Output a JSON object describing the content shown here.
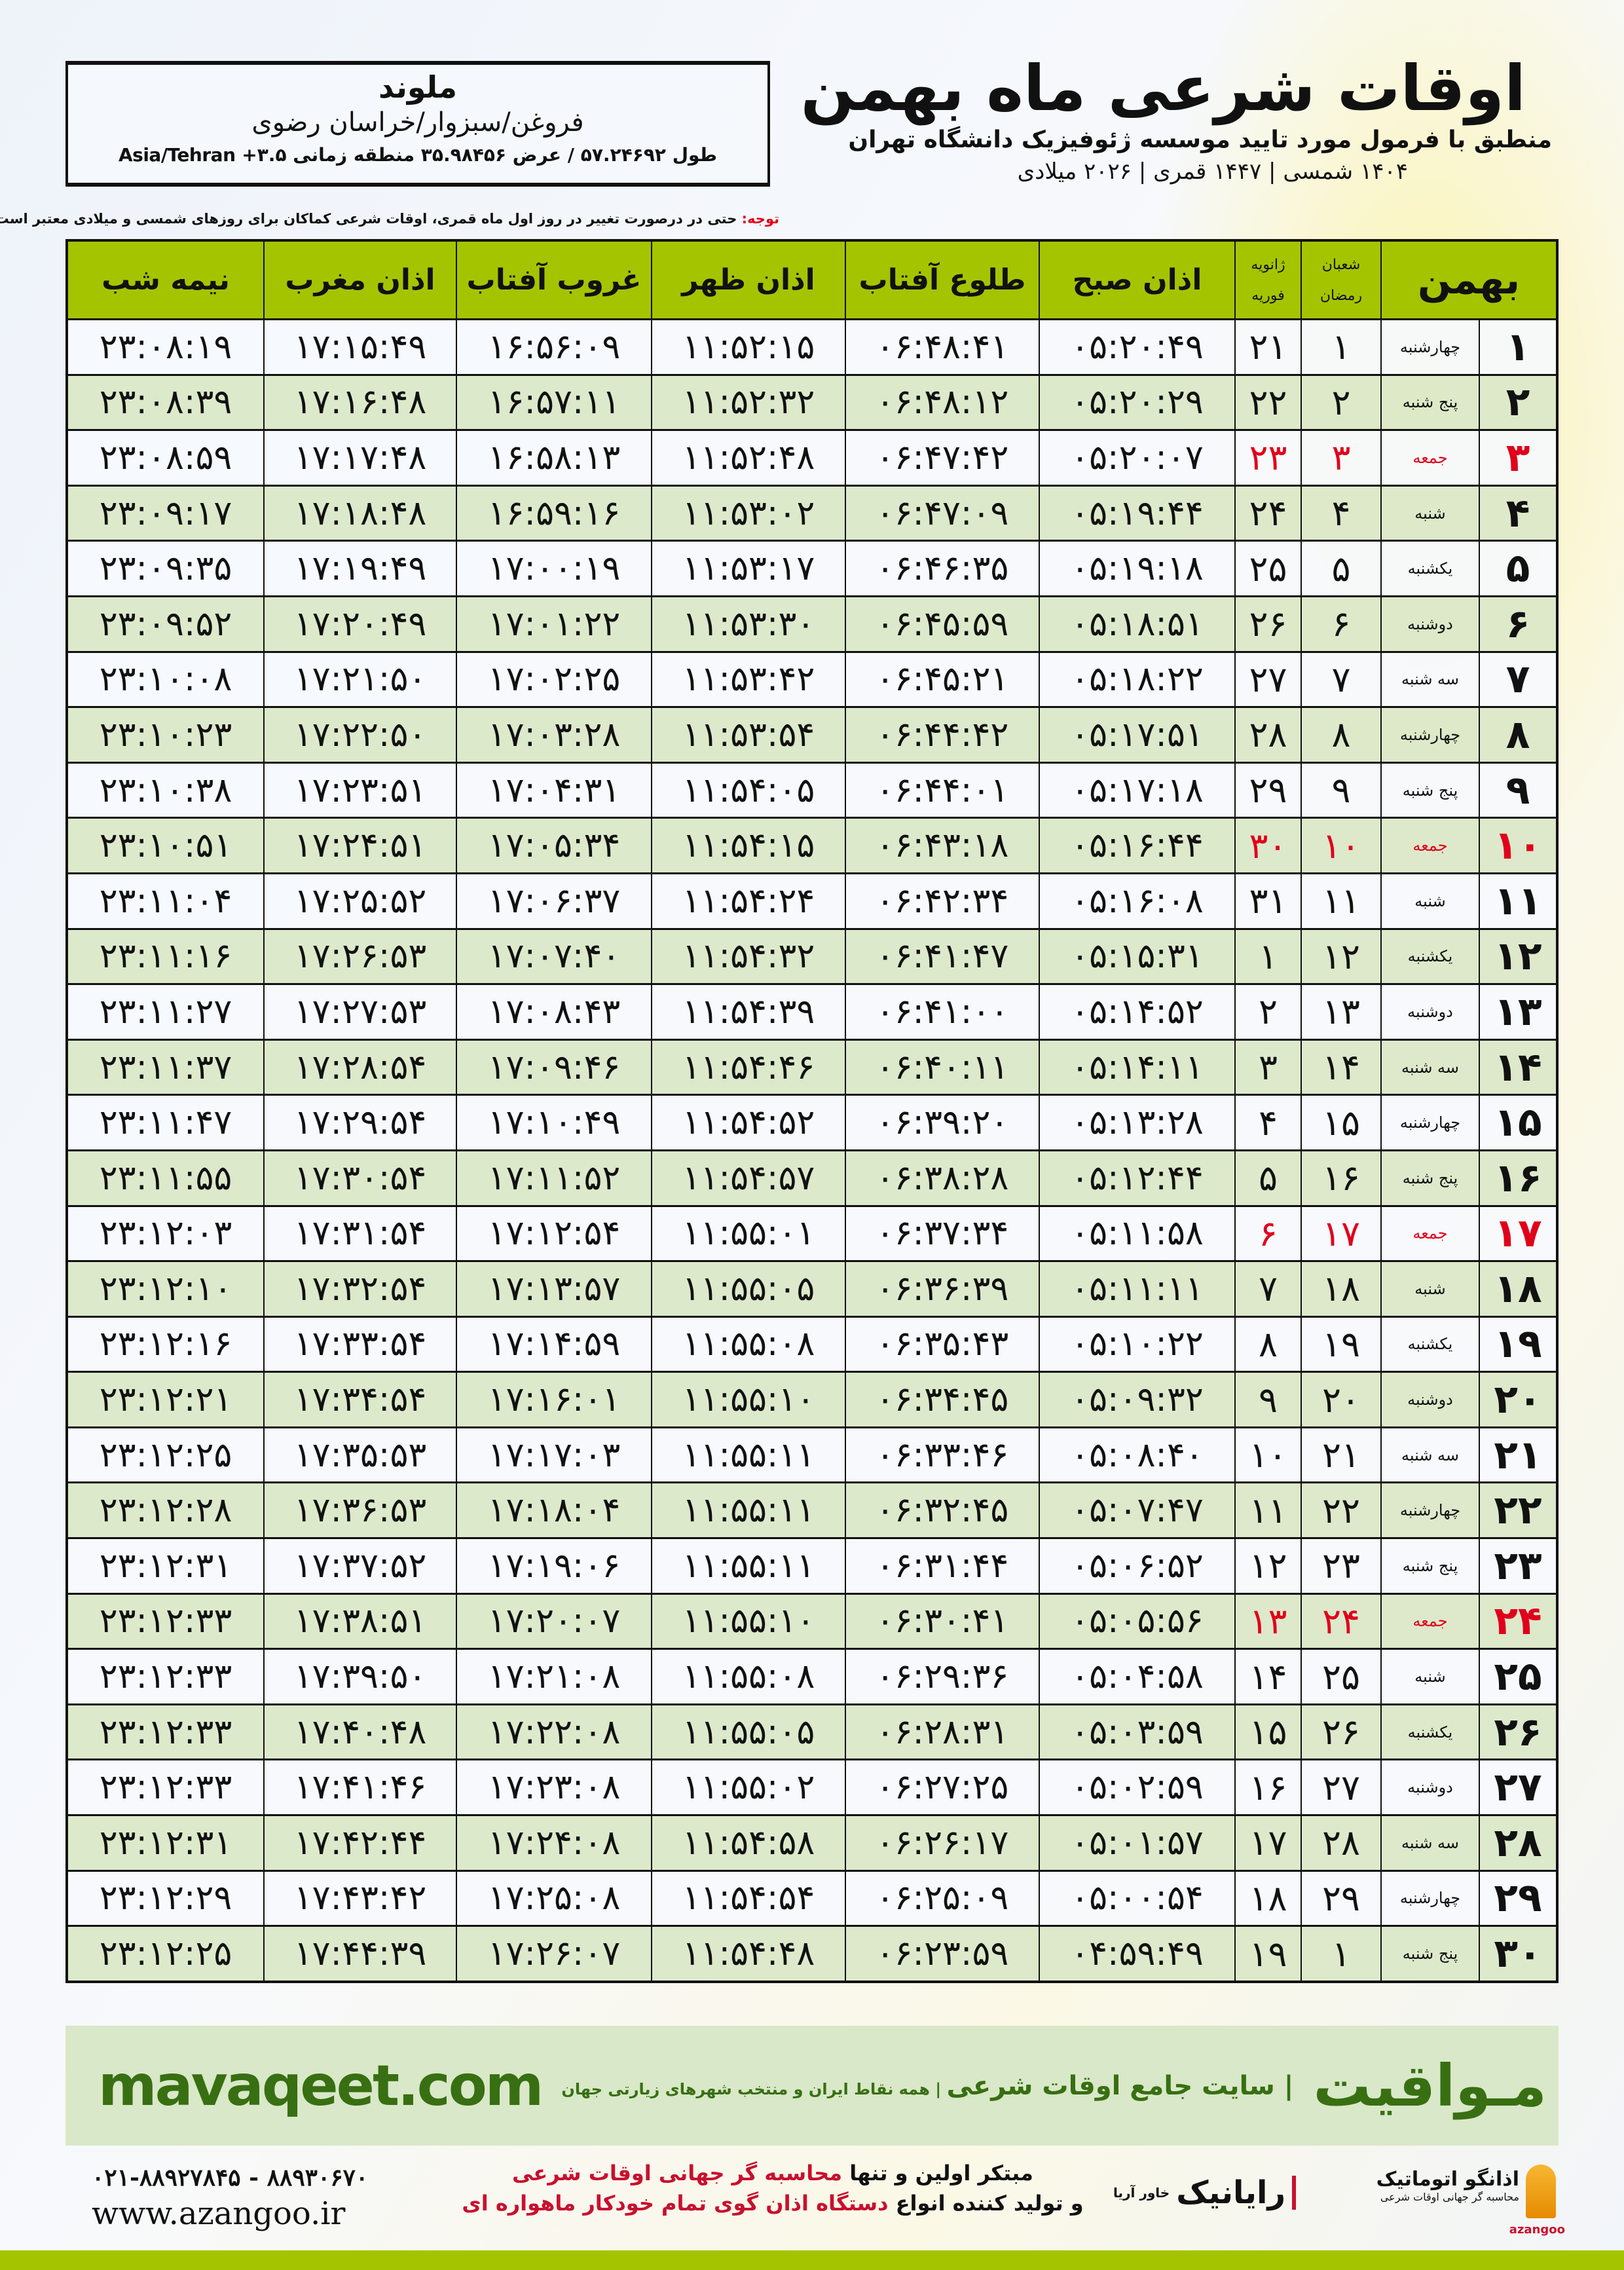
{
  "header": {
    "title": "اوقات شرعی ماه بهمن",
    "subtitle": "منطبق با فرمول مورد تایید موسسه ژئوفیزیک دانشگاه تهران",
    "years": "۱۴۰۴ شمسی | ۱۴۴۷ قمری | ۲۰۲۶ میلادی"
  },
  "location": {
    "city": "ملوند",
    "region": "فروغن/سبزوار/خراسان رضوی",
    "coords": "طول ۵۷.۲۴۶۹۲ / عرض ۳۵.۹۸۴۵۶ منطقه زمانی ۳.۵+ Asia/Tehran"
  },
  "note": {
    "label": "توجه:",
    "text": " حتی در درصورت تغییر در روز اول ماه قمری، اوقات شرعی کماکان برای روزهای شمسی و میلادی معتبر است."
  },
  "table": {
    "headers": {
      "bahman": "بهمن",
      "shaban": "شعبان",
      "ramadan": "رمضان",
      "january": "ژانویه",
      "february": "فوریه",
      "fajr": "اذان صبح",
      "sunrise": "طلوع آفتاب",
      "dhuhr": "اذان ظهر",
      "sunset": "غروب آفتاب",
      "maghrib": "اذان مغرب",
      "midnight": "نیمه شب"
    },
    "holiday_color": "#e0001b",
    "header_color": "#a5c400",
    "rows": [
      {
        "day": "۱",
        "weekday": "چهارشنبه",
        "hijri": "۱",
        "greg": "۲۱",
        "fajr": "۰۵:۲۰:۴۹",
        "sunrise": "۰۶:۴۸:۴۱",
        "dhuhr": "۱۱:۵۲:۱۵",
        "sunset": "۱۶:۵۶:۰۹",
        "maghrib": "۱۷:۱۵:۴۹",
        "midnight": "۲۳:۰۸:۱۹",
        "holiday": false
      },
      {
        "day": "۲",
        "weekday": "پنج شنبه",
        "hijri": "۲",
        "greg": "۲۲",
        "fajr": "۰۵:۲۰:۲۹",
        "sunrise": "۰۶:۴۸:۱۲",
        "dhuhr": "۱۱:۵۲:۳۲",
        "sunset": "۱۶:۵۷:۱۱",
        "maghrib": "۱۷:۱۶:۴۸",
        "midnight": "۲۳:۰۸:۳۹",
        "holiday": false
      },
      {
        "day": "۳",
        "weekday": "جمعه",
        "hijri": "۳",
        "greg": "۲۳",
        "fajr": "۰۵:۲۰:۰۷",
        "sunrise": "۰۶:۴۷:۴۲",
        "dhuhr": "۱۱:۵۲:۴۸",
        "sunset": "۱۶:۵۸:۱۳",
        "maghrib": "۱۷:۱۷:۴۸",
        "midnight": "۲۳:۰۸:۵۹",
        "holiday": true
      },
      {
        "day": "۴",
        "weekday": "شنبه",
        "hijri": "۴",
        "greg": "۲۴",
        "fajr": "۰۵:۱۹:۴۴",
        "sunrise": "۰۶:۴۷:۰۹",
        "dhuhr": "۱۱:۵۳:۰۲",
        "sunset": "۱۶:۵۹:۱۶",
        "maghrib": "۱۷:۱۸:۴۸",
        "midnight": "۲۳:۰۹:۱۷",
        "holiday": false
      },
      {
        "day": "۵",
        "weekday": "یکشنبه",
        "hijri": "۵",
        "greg": "۲۵",
        "fajr": "۰۵:۱۹:۱۸",
        "sunrise": "۰۶:۴۶:۳۵",
        "dhuhr": "۱۱:۵۳:۱۷",
        "sunset": "۱۷:۰۰:۱۹",
        "maghrib": "۱۷:۱۹:۴۹",
        "midnight": "۲۳:۰۹:۳۵",
        "holiday": false
      },
      {
        "day": "۶",
        "weekday": "دوشنبه",
        "hijri": "۶",
        "greg": "۲۶",
        "fajr": "۰۵:۱۸:۵۱",
        "sunrise": "۰۶:۴۵:۵۹",
        "dhuhr": "۱۱:۵۳:۳۰",
        "sunset": "۱۷:۰۱:۲۲",
        "maghrib": "۱۷:۲۰:۴۹",
        "midnight": "۲۳:۰۹:۵۲",
        "holiday": false
      },
      {
        "day": "۷",
        "weekday": "سه شنبه",
        "hijri": "۷",
        "greg": "۲۷",
        "fajr": "۰۵:۱۸:۲۲",
        "sunrise": "۰۶:۴۵:۲۱",
        "dhuhr": "۱۱:۵۳:۴۲",
        "sunset": "۱۷:۰۲:۲۵",
        "maghrib": "۱۷:۲۱:۵۰",
        "midnight": "۲۳:۱۰:۰۸",
        "holiday": false
      },
      {
        "day": "۸",
        "weekday": "چهارشنبه",
        "hijri": "۸",
        "greg": "۲۸",
        "fajr": "۰۵:۱۷:۵۱",
        "sunrise": "۰۶:۴۴:۴۲",
        "dhuhr": "۱۱:۵۳:۵۴",
        "sunset": "۱۷:۰۳:۲۸",
        "maghrib": "۱۷:۲۲:۵۰",
        "midnight": "۲۳:۱۰:۲۳",
        "holiday": false
      },
      {
        "day": "۹",
        "weekday": "پنج شنبه",
        "hijri": "۹",
        "greg": "۲۹",
        "fajr": "۰۵:۱۷:۱۸",
        "sunrise": "۰۶:۴۴:۰۱",
        "dhuhr": "۱۱:۵۴:۰۵",
        "sunset": "۱۷:۰۴:۳۱",
        "maghrib": "۱۷:۲۳:۵۱",
        "midnight": "۲۳:۱۰:۳۸",
        "holiday": false
      },
      {
        "day": "۱۰",
        "weekday": "جمعه",
        "hijri": "۱۰",
        "greg": "۳۰",
        "fajr": "۰۵:۱۶:۴۴",
        "sunrise": "۰۶:۴۳:۱۸",
        "dhuhr": "۱۱:۵۴:۱۵",
        "sunset": "۱۷:۰۵:۳۴",
        "maghrib": "۱۷:۲۴:۵۱",
        "midnight": "۲۳:۱۰:۵۱",
        "holiday": true
      },
      {
        "day": "۱۱",
        "weekday": "شنبه",
        "hijri": "۱۱",
        "greg": "۳۱",
        "fajr": "۰۵:۱۶:۰۸",
        "sunrise": "۰۶:۴۲:۳۴",
        "dhuhr": "۱۱:۵۴:۲۴",
        "sunset": "۱۷:۰۶:۳۷",
        "maghrib": "۱۷:۲۵:۵۲",
        "midnight": "۲۳:۱۱:۰۴",
        "holiday": false
      },
      {
        "day": "۱۲",
        "weekday": "یکشنبه",
        "hijri": "۱۲",
        "greg": "۱",
        "fajr": "۰۵:۱۵:۳۱",
        "sunrise": "۰۶:۴۱:۴۷",
        "dhuhr": "۱۱:۵۴:۳۲",
        "sunset": "۱۷:۰۷:۴۰",
        "maghrib": "۱۷:۲۶:۵۳",
        "midnight": "۲۳:۱۱:۱۶",
        "holiday": false
      },
      {
        "day": "۱۳",
        "weekday": "دوشنبه",
        "hijri": "۱۳",
        "greg": "۲",
        "fajr": "۰۵:۱۴:۵۲",
        "sunrise": "۰۶:۴۱:۰۰",
        "dhuhr": "۱۱:۵۴:۳۹",
        "sunset": "۱۷:۰۸:۴۳",
        "maghrib": "۱۷:۲۷:۵۳",
        "midnight": "۲۳:۱۱:۲۷",
        "holiday": false
      },
      {
        "day": "۱۴",
        "weekday": "سه شنبه",
        "hijri": "۱۴",
        "greg": "۳",
        "fajr": "۰۵:۱۴:۱۱",
        "sunrise": "۰۶:۴۰:۱۱",
        "dhuhr": "۱۱:۵۴:۴۶",
        "sunset": "۱۷:۰۹:۴۶",
        "maghrib": "۱۷:۲۸:۵۴",
        "midnight": "۲۳:۱۱:۳۷",
        "holiday": false
      },
      {
        "day": "۱۵",
        "weekday": "چهارشنبه",
        "hijri": "۱۵",
        "greg": "۴",
        "fajr": "۰۵:۱۳:۲۸",
        "sunrise": "۰۶:۳۹:۲۰",
        "dhuhr": "۱۱:۵۴:۵۲",
        "sunset": "۱۷:۱۰:۴۹",
        "maghrib": "۱۷:۲۹:۵۴",
        "midnight": "۲۳:۱۱:۴۷",
        "holiday": false
      },
      {
        "day": "۱۶",
        "weekday": "پنج شنبه",
        "hijri": "۱۶",
        "greg": "۵",
        "fajr": "۰۵:۱۲:۴۴",
        "sunrise": "۰۶:۳۸:۲۸",
        "dhuhr": "۱۱:۵۴:۵۷",
        "sunset": "۱۷:۱۱:۵۲",
        "maghrib": "۱۷:۳۰:۵۴",
        "midnight": "۲۳:۱۱:۵۵",
        "holiday": false
      },
      {
        "day": "۱۷",
        "weekday": "جمعه",
        "hijri": "۱۷",
        "greg": "۶",
        "fajr": "۰۵:۱۱:۵۸",
        "sunrise": "۰۶:۳۷:۳۴",
        "dhuhr": "۱۱:۵۵:۰۱",
        "sunset": "۱۷:۱۲:۵۴",
        "maghrib": "۱۷:۳۱:۵۴",
        "midnight": "۲۳:۱۲:۰۳",
        "holiday": true
      },
      {
        "day": "۱۸",
        "weekday": "شنبه",
        "hijri": "۱۸",
        "greg": "۷",
        "fajr": "۰۵:۱۱:۱۱",
        "sunrise": "۰۶:۳۶:۳۹",
        "dhuhr": "۱۱:۵۵:۰۵",
        "sunset": "۱۷:۱۳:۵۷",
        "maghrib": "۱۷:۳۲:۵۴",
        "midnight": "۲۳:۱۲:۱۰",
        "holiday": false
      },
      {
        "day": "۱۹",
        "weekday": "یکشنبه",
        "hijri": "۱۹",
        "greg": "۸",
        "fajr": "۰۵:۱۰:۲۲",
        "sunrise": "۰۶:۳۵:۴۳",
        "dhuhr": "۱۱:۵۵:۰۸",
        "sunset": "۱۷:۱۴:۵۹",
        "maghrib": "۱۷:۳۳:۵۴",
        "midnight": "۲۳:۱۲:۱۶",
        "holiday": false
      },
      {
        "day": "۲۰",
        "weekday": "دوشنبه",
        "hijri": "۲۰",
        "greg": "۹",
        "fajr": "۰۵:۰۹:۳۲",
        "sunrise": "۰۶:۳۴:۴۵",
        "dhuhr": "۱۱:۵۵:۱۰",
        "sunset": "۱۷:۱۶:۰۱",
        "maghrib": "۱۷:۳۴:۵۴",
        "midnight": "۲۳:۱۲:۲۱",
        "holiday": false
      },
      {
        "day": "۲۱",
        "weekday": "سه شنبه",
        "hijri": "۲۱",
        "greg": "۱۰",
        "fajr": "۰۵:۰۸:۴۰",
        "sunrise": "۰۶:۳۳:۴۶",
        "dhuhr": "۱۱:۵۵:۱۱",
        "sunset": "۱۷:۱۷:۰۳",
        "maghrib": "۱۷:۳۵:۵۳",
        "midnight": "۲۳:۱۲:۲۵",
        "holiday": false
      },
      {
        "day": "۲۲",
        "weekday": "چهارشنبه",
        "hijri": "۲۲",
        "greg": "۱۱",
        "fajr": "۰۵:۰۷:۴۷",
        "sunrise": "۰۶:۳۲:۴۵",
        "dhuhr": "۱۱:۵۵:۱۱",
        "sunset": "۱۷:۱۸:۰۴",
        "maghrib": "۱۷:۳۶:۵۳",
        "midnight": "۲۳:۱۲:۲۸",
        "holiday": false
      },
      {
        "day": "۲۳",
        "weekday": "پنج شنبه",
        "hijri": "۲۳",
        "greg": "۱۲",
        "fajr": "۰۵:۰۶:۵۲",
        "sunrise": "۰۶:۳۱:۴۴",
        "dhuhr": "۱۱:۵۵:۱۱",
        "sunset": "۱۷:۱۹:۰۶",
        "maghrib": "۱۷:۳۷:۵۲",
        "midnight": "۲۳:۱۲:۳۱",
        "holiday": false
      },
      {
        "day": "۲۴",
        "weekday": "جمعه",
        "hijri": "۲۴",
        "greg": "۱۳",
        "fajr": "۰۵:۰۵:۵۶",
        "sunrise": "۰۶:۳۰:۴۱",
        "dhuhr": "۱۱:۵۵:۱۰",
        "sunset": "۱۷:۲۰:۰۷",
        "maghrib": "۱۷:۳۸:۵۱",
        "midnight": "۲۳:۱۲:۳۳",
        "holiday": true
      },
      {
        "day": "۲۵",
        "weekday": "شنبه",
        "hijri": "۲۵",
        "greg": "۱۴",
        "fajr": "۰۵:۰۴:۵۸",
        "sunrise": "۰۶:۲۹:۳۶",
        "dhuhr": "۱۱:۵۵:۰۸",
        "sunset": "۱۷:۲۱:۰۸",
        "maghrib": "۱۷:۳۹:۵۰",
        "midnight": "۲۳:۱۲:۳۳",
        "holiday": false
      },
      {
        "day": "۲۶",
        "weekday": "یکشنبه",
        "hijri": "۲۶",
        "greg": "۱۵",
        "fajr": "۰۵:۰۳:۵۹",
        "sunrise": "۰۶:۲۸:۳۱",
        "dhuhr": "۱۱:۵۵:۰۵",
        "sunset": "۱۷:۲۲:۰۸",
        "maghrib": "۱۷:۴۰:۴۸",
        "midnight": "۲۳:۱۲:۳۳",
        "holiday": false
      },
      {
        "day": "۲۷",
        "weekday": "دوشنبه",
        "hijri": "۲۷",
        "greg": "۱۶",
        "fajr": "۰۵:۰۲:۵۹",
        "sunrise": "۰۶:۲۷:۲۵",
        "dhuhr": "۱۱:۵۵:۰۲",
        "sunset": "۱۷:۲۳:۰۸",
        "maghrib": "۱۷:۴۱:۴۶",
        "midnight": "۲۳:۱۲:۳۳",
        "holiday": false
      },
      {
        "day": "۲۸",
        "weekday": "سه شنبه",
        "hijri": "۲۸",
        "greg": "۱۷",
        "fajr": "۰۵:۰۱:۵۷",
        "sunrise": "۰۶:۲۶:۱۷",
        "dhuhr": "۱۱:۵۴:۵۸",
        "sunset": "۱۷:۲۴:۰۸",
        "maghrib": "۱۷:۴۲:۴۴",
        "midnight": "۲۳:۱۲:۳۱",
        "holiday": false
      },
      {
        "day": "۲۹",
        "weekday": "چهارشنبه",
        "hijri": "۲۹",
        "greg": "۱۸",
        "fajr": "۰۵:۰۰:۵۴",
        "sunrise": "۰۶:۲۵:۰۹",
        "dhuhr": "۱۱:۵۴:۵۴",
        "sunset": "۱۷:۲۵:۰۸",
        "maghrib": "۱۷:۴۳:۴۲",
        "midnight": "۲۳:۱۲:۲۹",
        "holiday": false
      },
      {
        "day": "۳۰",
        "weekday": "پنج شنبه",
        "hijri": "۱",
        "greg": "۱۹",
        "fajr": "۰۴:۵۹:۴۹",
        "sunrise": "۰۶:۲۳:۵۹",
        "dhuhr": "۱۱:۵۴:۴۸",
        "sunset": "۱۷:۲۶:۰۷",
        "maghrib": "۱۷:۴۴:۳۹",
        "midnight": "۲۳:۱۲:۲۵",
        "holiday": false
      }
    ]
  },
  "footer": {
    "brand": "مـواقیت",
    "tagline": "| سایت جامع اوقات شرعی",
    "tagline_small": " | همه نقاط ایران و منتخب شهرهای زیارتی جهان",
    "site": "mavaqeet.com",
    "promo_line1_a": "مبتکر اولین و تنها ",
    "promo_line1_b": "محاسبه گر جهانی اوقات شرعی",
    "promo_line2_a": "و تولید کننده انواع ",
    "promo_line2_b": "دستگاه اذان گوی تمام خودکار ماهواره ای",
    "phone": "۰۲۱-۸۸۹۲۷۸۴۵ - ۸۸۹۳۰۶۷۰",
    "web": "www.azangoo.ir",
    "logo_rayanik": "رایانیک",
    "logo_rayanik_sub": "خاور آریا",
    "logo_azangoo": "اذانگو اتوماتیک",
    "logo_azangoo_sub": "محاسبه گر جهانی اوقات شرعی",
    "logo_azangoo_en": "azangoo",
    "accent_color": "#386f12"
  }
}
